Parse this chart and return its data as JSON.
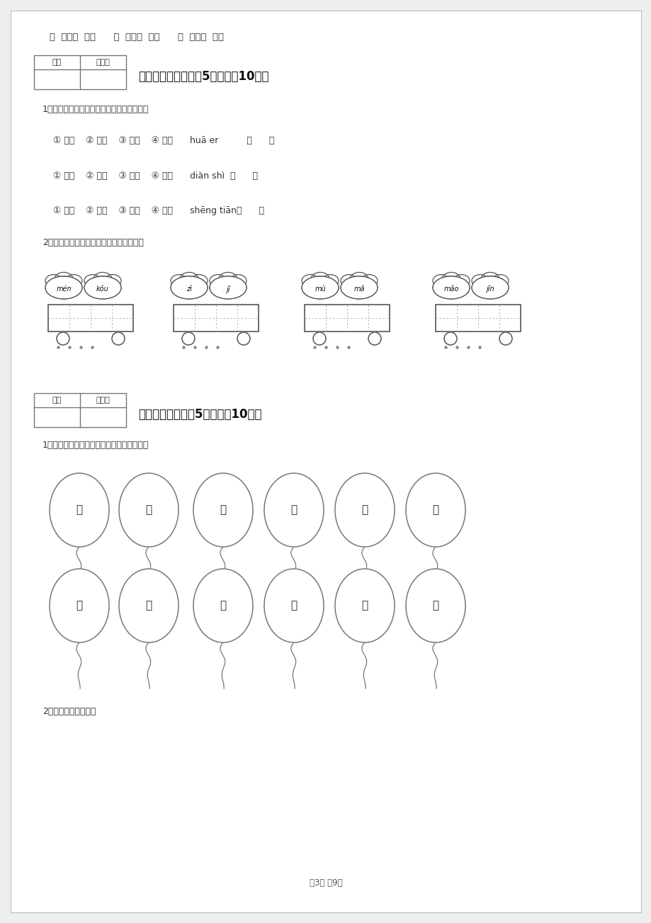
{
  "bg_color": "#eeeeee",
  "page_bg": "#ffffff",
  "top_line": "（  ）全（  ）美      （  ）方（  ）计      （  ）军（  ）马",
  "sec3_title": "三、识字写字（每题5分，共计10分）",
  "q1_instr": "1、把词语的序号填写到拼音后面的括号里。",
  "q1_rows": [
    "① 花朵    ② 云朵    ③ 花儿    ④ 花开      huā er          （      ）",
    "① 电灯    ② 电话    ③ 电影    ④ 电视      diàn shì  （      ）",
    "① 升旗    ② 升起    ③ 升高    ④ 升天      shēng tiān（      ）"
  ],
  "q2_instr": "2、我会读准拼音，还能写出正确的汉字。",
  "cloud_pairs": [
    [
      "mén",
      "kǒu"
    ],
    [
      "zì",
      "jǐ"
    ],
    [
      "mù",
      "mǎ"
    ],
    [
      "māo",
      "jīn"
    ]
  ],
  "sec4_title": "四、连一连（每题5分，共计10分）",
  "q3_instr": "1、哪两个气球可以连在一起，请你连一连。",
  "balloon_row1": [
    "松",
    "朋",
    "田",
    "黑",
    "蓝",
    "故"
  ],
  "balloon_row2": [
    "野",
    "影",
    "鼠",
    "友",
    "乡",
    "天"
  ],
  "q4_instr": "2、照样子，连一连。",
  "footer": "第3页 共9页",
  "score_box_labels": [
    "得分",
    "评卷人"
  ]
}
